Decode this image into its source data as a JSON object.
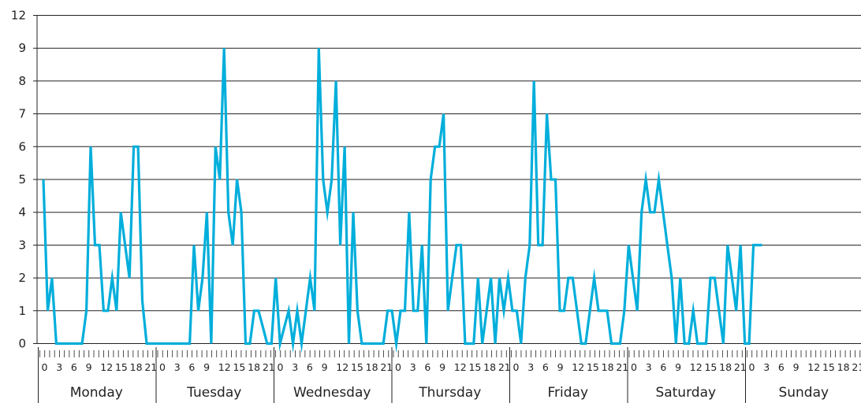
{
  "chart_data": {
    "type": "line",
    "title": "",
    "xlabel": "",
    "ylabel": "",
    "y_ticks": [
      "0",
      "1",
      "2",
      "3",
      "4",
      "5",
      "6",
      "7",
      "8",
      "9",
      "12"
    ],
    "grid": true,
    "line_color": "#00AEDB",
    "days": [
      "Monday",
      "Tuesday",
      "Wednesday",
      "Thursday",
      "Friday",
      "Saturday",
      "Sunday"
    ],
    "hour_tick_labels": [
      "0",
      "3",
      "6",
      "9",
      "12",
      "15",
      "18",
      "21"
    ],
    "hours_per_day": 24,
    "series": [
      {
        "values": [
          5,
          1,
          2,
          0,
          0,
          0,
          0,
          0,
          0,
          0,
          1,
          6,
          3,
          3,
          1,
          1,
          2,
          1,
          4,
          3,
          2,
          6,
          6,
          1.3,
          0,
          0,
          0,
          0,
          0,
          0,
          0,
          0,
          0,
          0,
          0,
          3,
          1,
          2,
          4,
          0,
          6,
          5,
          9,
          4,
          3,
          5,
          4,
          0,
          0,
          1,
          1,
          0.5,
          0,
          0,
          2,
          0,
          0.5,
          1,
          0,
          1,
          0,
          1,
          2,
          1,
          9,
          5,
          4,
          5,
          8,
          3,
          6,
          0,
          4,
          1,
          0,
          0,
          0,
          0,
          0,
          0,
          1,
          1,
          0,
          1,
          1,
          4,
          1,
          1,
          3,
          0,
          5,
          6,
          6,
          7,
          1,
          2,
          3,
          3,
          0,
          0,
          0,
          2,
          0,
          1,
          2,
          0,
          2,
          1,
          2,
          1,
          1,
          0,
          2,
          3,
          8,
          3,
          3,
          7,
          5,
          5,
          1,
          1,
          2,
          2,
          1,
          0,
          0,
          1,
          2,
          1,
          1,
          1,
          0,
          0,
          0,
          1,
          3,
          2,
          1,
          4,
          5,
          4,
          4,
          5,
          4,
          3,
          2,
          0,
          2,
          0,
          0,
          1,
          0,
          0,
          0,
          2,
          2,
          1,
          0,
          3,
          2,
          1,
          3,
          0,
          0,
          3,
          3,
          3
        ]
      }
    ]
  }
}
